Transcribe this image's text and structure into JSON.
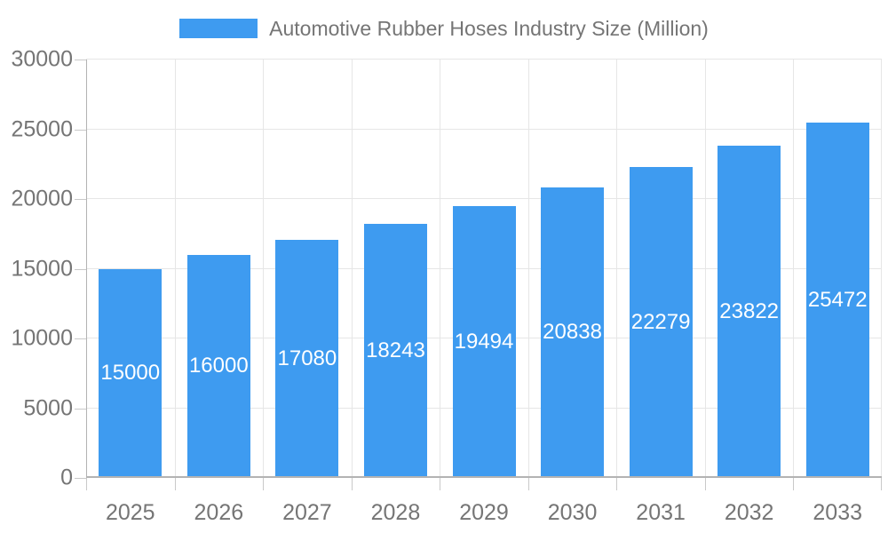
{
  "chart_data": {
    "type": "bar",
    "title": "",
    "legend": "Automotive Rubber Hoses Industry Size (Million)",
    "legend_position": "top",
    "categories": [
      "2025",
      "2026",
      "2027",
      "2028",
      "2029",
      "2030",
      "2031",
      "2032",
      "2033"
    ],
    "series": [
      {
        "name": "Automotive Rubber Hoses Industry Size (Million)",
        "values": [
          15000,
          16000,
          17080,
          18243,
          19494,
          20838,
          22279,
          23822,
          25472
        ]
      }
    ],
    "bar_value_labels": [
      "15000",
      "16000",
      "17080",
      "18243",
      "19494",
      "20838",
      "22279",
      "23822",
      "25472"
    ],
    "xlabel": "",
    "ylabel": "",
    "ylim": [
      0,
      30000
    ],
    "ytick_interval": 5000,
    "ytick_labels": [
      "0",
      "5000",
      "10000",
      "15000",
      "20000",
      "25000",
      "30000"
    ],
    "grid": true,
    "colors": {
      "bar": "#3E9BF0",
      "grid_line": "#E6E6E6",
      "axis_line": "#B3B3B3",
      "tick_mark": "#C9C9C9",
      "axis_text": "#757575",
      "bar_label_text": "#FFFFFF",
      "background": "#FFFFFF"
    }
  }
}
